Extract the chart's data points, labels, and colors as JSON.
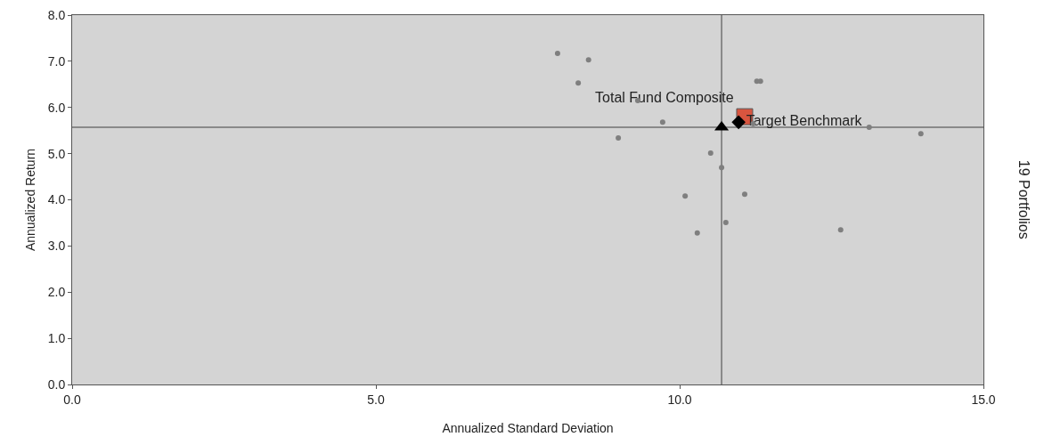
{
  "chart_data": {
    "type": "scatter",
    "xlabel": "Annualized Standard Deviation",
    "ylabel": "Annualized Return",
    "annotations": [
      "19 Portfolios"
    ],
    "xlim": [
      0,
      15
    ],
    "xticks": [
      {
        "value": 0,
        "label": "0.0"
      },
      {
        "value": 5,
        "label": "5.0"
      },
      {
        "value": 10,
        "label": "10.0"
      },
      {
        "value": 15,
        "label": "15.0"
      }
    ],
    "ylim": [
      0,
      8
    ],
    "yticks": [
      {
        "value": 0,
        "label": "0.0"
      },
      {
        "value": 1,
        "label": "1.0"
      },
      {
        "value": 2,
        "label": "2.0"
      },
      {
        "value": 3,
        "label": "3.0"
      },
      {
        "value": 4,
        "label": "4.0"
      },
      {
        "value": 5,
        "label": "5.0"
      },
      {
        "value": 6,
        "label": "6.0"
      },
      {
        "value": 7,
        "label": "7.0"
      },
      {
        "value": 8,
        "label": "8.0"
      }
    ],
    "grid": false,
    "ref_lines": [
      {
        "axis": "x",
        "value": 10.69,
        "color": "#707070"
      },
      {
        "axis": "y",
        "value": 5.57,
        "color": "#707070"
      }
    ],
    "series": [
      {
        "color": "#7f7f7f",
        "marker": "circle",
        "x": [
          7.99,
          8.5,
          8.33,
          9.31,
          9.72,
          8.99,
          10.51,
          10.69,
          10.09,
          11.07,
          10.76,
          10.29,
          12.65,
          11.27,
          11.33,
          13.12,
          13.97,
          11.21
        ],
        "values": [
          7.17,
          7.03,
          6.53,
          6.15,
          5.68,
          5.34,
          5.01,
          4.7,
          4.08,
          4.12,
          3.51,
          3.28,
          3.35,
          6.57,
          6.57,
          5.57,
          5.43,
          5.65
        ]
      },
      {
        "color": "#000000",
        "marker": "triangle",
        "x": [
          10.69
        ],
        "values": [
          5.57
        ]
      },
      {
        "name": "Total Fund Composite",
        "color": "#d9553f",
        "marker": "square",
        "x": [
          11.07
        ],
        "values": [
          5.8
        ]
      },
      {
        "name": "Target Benchmark",
        "color": "#000000",
        "marker": "diamond",
        "x": [
          10.97
        ],
        "values": [
          5.68
        ]
      }
    ]
  }
}
